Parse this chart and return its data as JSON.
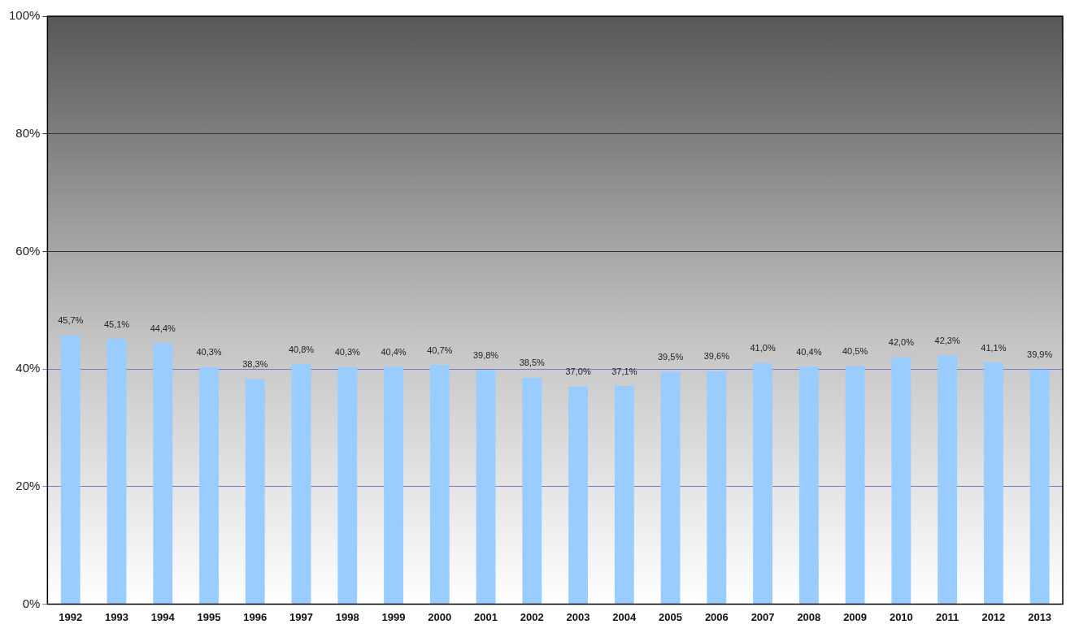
{
  "chart_data": {
    "type": "bar",
    "categories": [
      "1992",
      "1993",
      "1994",
      "1995",
      "1996",
      "1997",
      "1998",
      "1999",
      "2000",
      "2001",
      "2002",
      "2003",
      "2004",
      "2005",
      "2006",
      "2007",
      "2008",
      "2009",
      "2010",
      "2011",
      "2012",
      "2013"
    ],
    "values": [
      45.7,
      45.1,
      44.4,
      40.3,
      38.3,
      40.8,
      40.3,
      40.4,
      40.7,
      39.8,
      38.5,
      37.0,
      37.1,
      39.5,
      39.6,
      41.0,
      40.4,
      40.5,
      42.0,
      42.3,
      41.1,
      39.9
    ],
    "value_labels": [
      "45,7%",
      "45,1%",
      "44,4%",
      "40,3%",
      "38,3%",
      "40,8%",
      "40,3%",
      "40,4%",
      "40,7%",
      "39,8%",
      "38,5%",
      "37,0%",
      "37,1%",
      "39,5%",
      "39,6%",
      "41,0%",
      "40,4%",
      "40,5%",
      "42,0%",
      "42,3%",
      "41,1%",
      "39,9%"
    ],
    "color": "#99ccff",
    "ylim": [
      0,
      100
    ],
    "yticks": [
      {
        "value": 0,
        "label": "0%"
      },
      {
        "value": 20,
        "label": "20%"
      },
      {
        "value": 40,
        "label": "40%"
      },
      {
        "value": 60,
        "label": "60%"
      },
      {
        "value": 80,
        "label": "80%"
      },
      {
        "value": 100,
        "label": "100%"
      }
    ],
    "grid": "y",
    "legend": false
  }
}
